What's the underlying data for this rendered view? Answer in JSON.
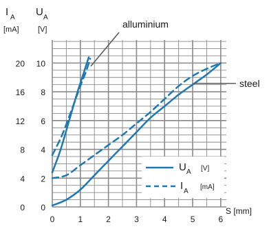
{
  "chart_data": {
    "type": "line",
    "axes_header": {
      "i_letter": "I",
      "i_sub": "A",
      "i_unit": "[mA]",
      "u_letter": "U",
      "u_sub": "A",
      "u_unit": "[V]"
    },
    "x_ticks": [
      "0",
      "1",
      "2",
      "3",
      "4",
      "5",
      "6"
    ],
    "x_tick_values": [
      0,
      1,
      2,
      3,
      4,
      5,
      6
    ],
    "x_axis_label": "S [mm]",
    "y_ticks_current": [
      "0",
      "4",
      "8",
      "12",
      "16",
      "20"
    ],
    "y_ticks_voltage": [
      "0",
      "2",
      "4",
      "6",
      "8",
      "10"
    ],
    "y_tick_values_voltage": [
      0,
      2,
      4,
      6,
      8,
      10
    ],
    "xlim": [
      0,
      6.2
    ],
    "ylim_voltage": [
      0,
      11.6
    ],
    "grid": true,
    "color": "#1e78b4",
    "series": [
      {
        "name": "UA",
        "material": "alluminium",
        "dash": false,
        "points": [
          [
            0,
            2.4
          ],
          [
            0.3,
            4
          ],
          [
            0.6,
            6
          ],
          [
            0.9,
            8
          ],
          [
            1.1,
            9.2
          ],
          [
            1.3,
            10.4
          ]
        ]
      },
      {
        "name": "IA",
        "material": "alluminium",
        "dash": true,
        "points": [
          [
            0,
            3.6
          ],
          [
            0.35,
            5
          ],
          [
            0.7,
            6.8
          ],
          [
            1.0,
            8.4
          ],
          [
            1.2,
            9.4
          ],
          [
            1.35,
            10.3
          ]
        ]
      },
      {
        "name": "UA",
        "material": "steel",
        "dash": false,
        "points": [
          [
            0,
            0.1
          ],
          [
            0.5,
            0.5
          ],
          [
            1,
            1.2
          ],
          [
            1.5,
            2.2
          ],
          [
            2,
            3.2
          ],
          [
            2.5,
            4.2
          ],
          [
            3,
            5.2
          ],
          [
            3.5,
            6.2
          ],
          [
            4,
            7
          ],
          [
            4.5,
            7.8
          ],
          [
            5,
            8.5
          ],
          [
            5.5,
            9.2
          ],
          [
            6,
            10
          ]
        ]
      },
      {
        "name": "IA",
        "material": "steel",
        "dash": true,
        "points": [
          [
            0,
            2
          ],
          [
            0.5,
            2.2
          ],
          [
            1,
            2.9
          ],
          [
            1.5,
            3.6
          ],
          [
            2,
            4.3
          ],
          [
            2.5,
            5
          ],
          [
            3,
            5.8
          ],
          [
            3.5,
            6.6
          ],
          [
            4,
            7.5
          ],
          [
            4.5,
            8.4
          ],
          [
            5,
            9.1
          ],
          [
            5.5,
            9.6
          ],
          [
            6,
            10
          ]
        ]
      }
    ],
    "annotations": [
      {
        "text": "alluminium",
        "at": [
          1.3,
          9.0
        ]
      },
      {
        "text": "steel",
        "at": [
          4.6,
          7.9
        ]
      }
    ],
    "legend": {
      "position": "bottom-right",
      "items": [
        {
          "letter": "U",
          "sub": "A",
          "unit": "[V]",
          "dash": false
        },
        {
          "letter": "I",
          "sub": "A",
          "unit": "[mA]",
          "dash": true
        }
      ]
    }
  }
}
